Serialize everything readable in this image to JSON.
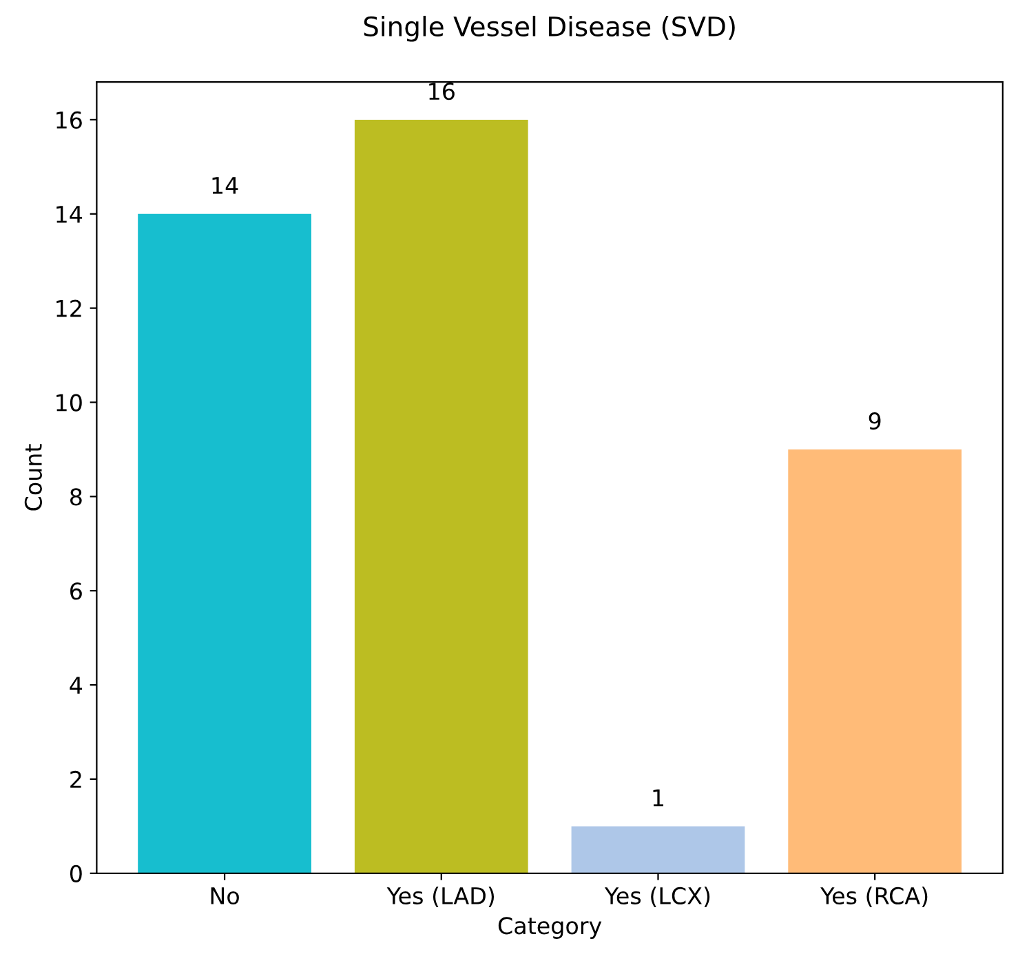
{
  "chart_data": {
    "type": "bar",
    "title": "Single Vessel Disease (SVD)",
    "xlabel": "Category",
    "ylabel": "Count",
    "categories": [
      "No",
      "Yes (LAD)",
      "Yes (LCX)",
      "Yes (RCA)"
    ],
    "values": [
      14,
      16,
      1,
      9
    ],
    "colors": [
      "#17becf",
      "#bcbd22",
      "#aec7e8",
      "#ffbb78"
    ],
    "ylim": [
      0,
      16.8
    ],
    "yticks": [
      0,
      2,
      4,
      6,
      8,
      10,
      12,
      14,
      16
    ],
    "data_labels": true,
    "grid": false,
    "legend": false
  }
}
